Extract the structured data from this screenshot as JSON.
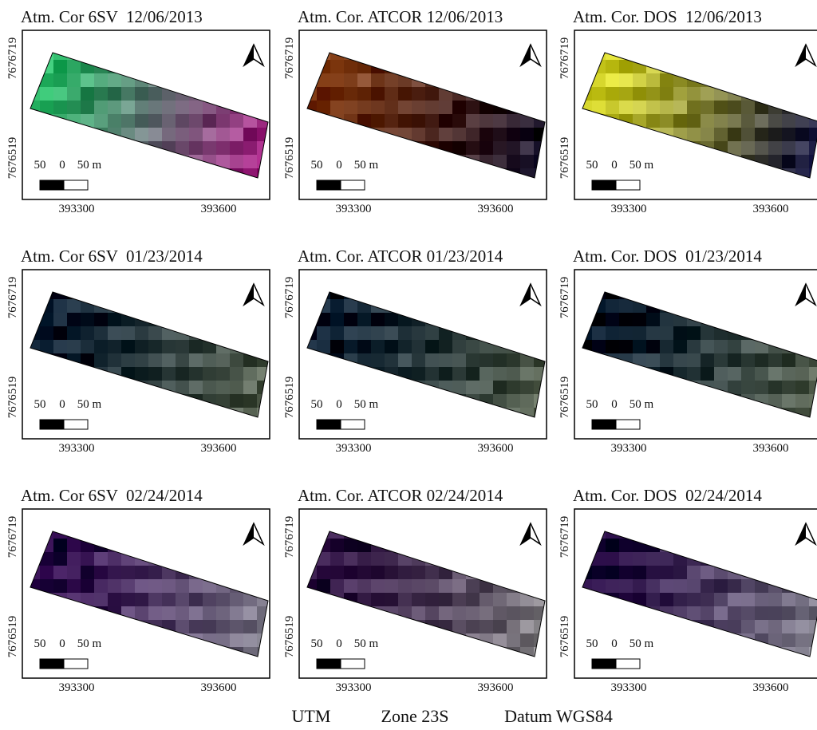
{
  "panels": [
    {
      "title": "Atm. Cor 6SV  12/06/2013",
      "y_labels": [
        "7676719",
        "7676519"
      ],
      "x_labels": [
        "393300",
        "393600"
      ],
      "scale": [
        "50",
        "0",
        "50 m"
      ]
    },
    {
      "title": "Atm. Cor. ATCOR 12/06/2013",
      "y_labels": [
        "7676719",
        "7676519"
      ],
      "x_labels": [
        "393300",
        "393600"
      ],
      "scale": [
        "50",
        "0",
        "50 m"
      ]
    },
    {
      "title": "Atm. Cor. DOS  12/06/2013",
      "y_labels": [
        "7676719",
        "7676519"
      ],
      "x_labels": [
        "393300",
        "393600"
      ],
      "scale": [
        "50",
        "0",
        "50 m"
      ]
    },
    {
      "title": "Atm. Cor 6SV  01/23/2014",
      "y_labels": [
        "7676719",
        "7676519"
      ],
      "x_labels": [
        "393300",
        "393600"
      ],
      "scale": [
        "50",
        "0",
        "50 m"
      ]
    },
    {
      "title": "Atm. Cor. ATCOR 01/23/2014",
      "y_labels": [
        "7676719",
        "7676519"
      ],
      "x_labels": [
        "393300",
        "393600"
      ],
      "scale": [
        "50",
        "0",
        "50 m"
      ]
    },
    {
      "title": "Atm. Cor. DOS  01/23/2014",
      "y_labels": [
        "7676719",
        "7676519"
      ],
      "x_labels": [
        "393300",
        "393600"
      ],
      "scale": [
        "50",
        "0",
        "50 m"
      ]
    },
    {
      "title": "Atm. Cor 6SV  02/24/2014",
      "y_labels": [
        "7676719",
        "7676519"
      ],
      "x_labels": [
        "393300",
        "393600"
      ],
      "scale": [
        "50",
        "0",
        "50 m"
      ]
    },
    {
      "title": "Atm. Cor. ATCOR 02/24/2014",
      "y_labels": [
        "7676719",
        "7676519"
      ],
      "x_labels": [
        "393300",
        "393600"
      ],
      "scale": [
        "50",
        "0",
        "50 m"
      ]
    },
    {
      "title": "Atm. Cor. DOS  02/24/2014",
      "y_labels": [
        "7676719",
        "7676519"
      ],
      "x_labels": [
        "393300",
        "393600"
      ],
      "scale": [
        "50",
        "0",
        "50 m"
      ]
    }
  ],
  "footer": [
    "UTM",
    "Zone 23S",
    "Datum WGS84"
  ]
}
